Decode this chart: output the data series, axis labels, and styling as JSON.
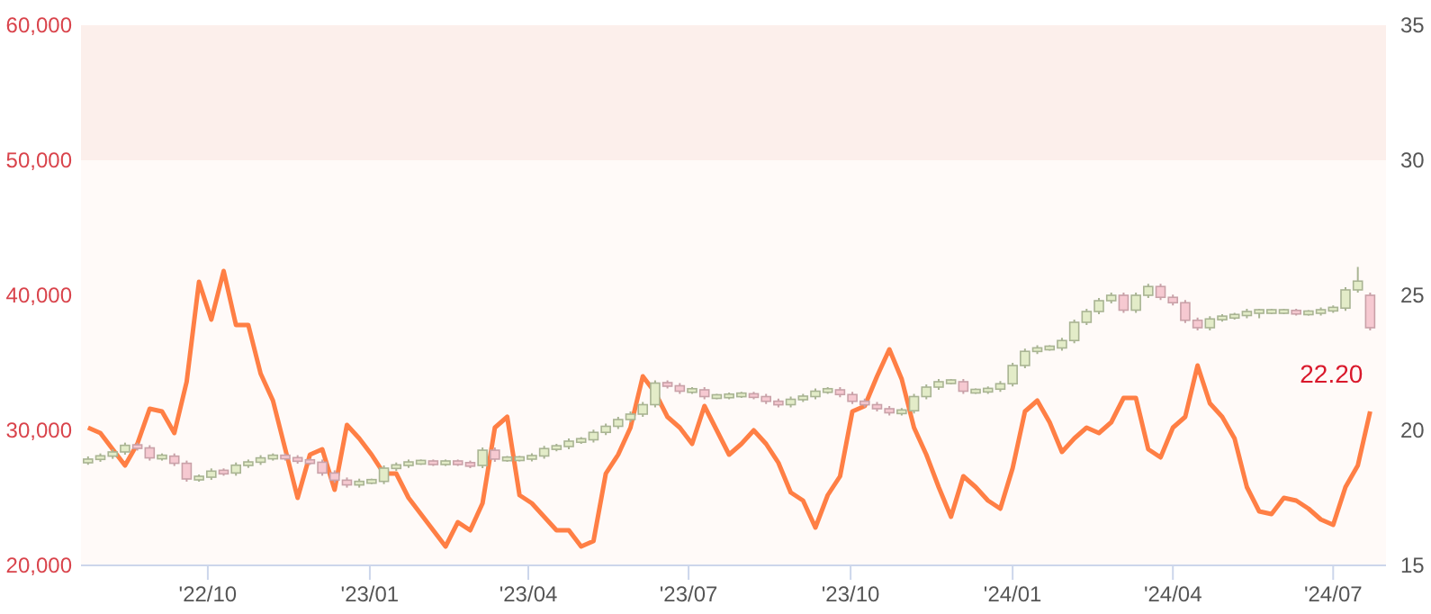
{
  "chart_data": {
    "type": "candlestick",
    "annotations": [
      "22.20"
    ],
    "x": [
      "2022-07-25",
      "2022-08-01",
      "2022-08-08",
      "2022-08-15",
      "2022-08-22",
      "2022-08-29",
      "2022-09-05",
      "2022-09-12",
      "2022-09-19",
      "2022-09-26",
      "2022-10-03",
      "2022-10-10",
      "2022-10-17",
      "2022-10-24",
      "2022-10-31",
      "2022-11-07",
      "2022-11-14",
      "2022-11-21",
      "2022-11-28",
      "2022-12-05",
      "2022-12-12",
      "2022-12-19",
      "2022-12-26",
      "2023-01-02",
      "2023-01-09",
      "2023-01-16",
      "2023-01-23",
      "2023-01-30",
      "2023-02-06",
      "2023-02-13",
      "2023-02-20",
      "2023-02-27",
      "2023-03-06",
      "2023-03-13",
      "2023-03-20",
      "2023-03-27",
      "2023-04-03",
      "2023-04-10",
      "2023-04-17",
      "2023-04-24",
      "2023-05-01",
      "2023-05-08",
      "2023-05-15",
      "2023-05-22",
      "2023-05-29",
      "2023-06-05",
      "2023-06-12",
      "2023-06-19",
      "2023-06-26",
      "2023-07-03",
      "2023-07-10",
      "2023-07-17",
      "2023-07-24",
      "2023-07-31",
      "2023-08-07",
      "2023-08-14",
      "2023-08-21",
      "2023-08-28",
      "2023-09-04",
      "2023-09-11",
      "2023-09-18",
      "2023-09-25",
      "2023-10-02",
      "2023-10-09",
      "2023-10-16",
      "2023-10-23",
      "2023-10-30",
      "2023-11-06",
      "2023-11-13",
      "2023-11-20",
      "2023-11-27",
      "2023-12-04",
      "2023-12-11",
      "2023-12-18",
      "2023-12-25",
      "2024-01-01",
      "2024-01-08",
      "2024-01-15",
      "2024-01-22",
      "2024-01-29",
      "2024-02-05",
      "2024-02-12",
      "2024-02-19",
      "2024-02-26",
      "2024-03-04",
      "2024-03-11",
      "2024-03-18",
      "2024-03-25",
      "2024-04-01",
      "2024-04-08",
      "2024-04-15",
      "2024-04-22",
      "2024-04-29",
      "2024-05-06",
      "2024-05-13",
      "2024-05-20",
      "2024-05-27",
      "2024-06-03",
      "2024-06-10",
      "2024-06-17",
      "2024-06-24",
      "2024-07-01",
      "2024-07-08",
      "2024-07-15",
      "2024-07-22"
    ],
    "xlim": [
      "2022-07-21",
      "2024-07-31"
    ],
    "xticks": [
      {
        "value": "2022-10-01",
        "label": "'22/10"
      },
      {
        "value": "2023-01-01",
        "label": "'23/01"
      },
      {
        "value": "2023-04-01",
        "label": "'23/04"
      },
      {
        "value": "2023-07-01",
        "label": "'23/07"
      },
      {
        "value": "2023-10-01",
        "label": "'23/10"
      },
      {
        "value": "2024-01-01",
        "label": "'24/01"
      },
      {
        "value": "2024-04-01",
        "label": "'24/04"
      },
      {
        "value": "2024-07-01",
        "label": "'24/07"
      }
    ],
    "ylim": [
      20000,
      60000
    ],
    "yticks": [
      {
        "value": 20000,
        "label": "20,000"
      },
      {
        "value": 30000,
        "label": "30,000"
      },
      {
        "value": 40000,
        "label": "40,000"
      },
      {
        "value": 50000,
        "label": "50,000"
      },
      {
        "value": 60000,
        "label": "60,000"
      }
    ],
    "y2lim": [
      15,
      35
    ],
    "y2ticks": [
      15,
      20,
      25,
      30,
      35
    ],
    "bands": [
      {
        "axis": "y",
        "from": 50000,
        "to": 60000,
        "color": "#fcefeb"
      },
      {
        "axis": "y",
        "from": 20000,
        "to": 50000,
        "color": "#fffaf8"
      }
    ],
    "series": [
      {
        "type": "candlestick",
        "ohlc": [
          [
            27600,
            28070,
            27450,
            27870
          ],
          [
            27870,
            28290,
            27670,
            28090
          ],
          [
            28090,
            28600,
            27890,
            28400
          ],
          [
            28400,
            29090,
            28200,
            28890
          ],
          [
            28890,
            29090,
            28500,
            28700
          ],
          [
            28700,
            28900,
            27760,
            27960
          ],
          [
            27960,
            28290,
            27760,
            28090
          ],
          [
            28090,
            28290,
            27360,
            27560
          ],
          [
            27560,
            27760,
            26200,
            26400
          ],
          [
            26400,
            26730,
            26200,
            26530
          ],
          [
            26530,
            27180,
            26330,
            26980
          ],
          [
            26980,
            27180,
            26640,
            26840
          ],
          [
            26840,
            27620,
            26640,
            27420
          ],
          [
            27420,
            27840,
            27220,
            27640
          ],
          [
            27640,
            28160,
            27440,
            27960
          ],
          [
            27960,
            28290,
            27760,
            28090
          ],
          [
            28090,
            28290,
            27760,
            27960
          ],
          [
            27960,
            28160,
            27530,
            27730
          ],
          [
            27730,
            27930,
            27440,
            27640
          ],
          [
            27640,
            27840,
            26640,
            26840
          ],
          [
            26840,
            27040,
            26110,
            26310
          ],
          [
            26310,
            26510,
            25760,
            25960
          ],
          [
            25960,
            26420,
            25760,
            26220
          ],
          [
            26220,
            26420,
            26020,
            26220
          ],
          [
            26220,
            27400,
            26020,
            27200
          ],
          [
            27200,
            27620,
            27000,
            27420
          ],
          [
            27420,
            27840,
            27220,
            27640
          ],
          [
            27640,
            27840,
            27440,
            27640
          ],
          [
            27640,
            27840,
            27360,
            27560
          ],
          [
            27560,
            27840,
            27360,
            27640
          ],
          [
            27640,
            27840,
            27360,
            27560
          ],
          [
            27560,
            27760,
            27200,
            27400
          ],
          [
            27400,
            28730,
            27200,
            28530
          ],
          [
            28530,
            28730,
            27670,
            27870
          ],
          [
            27870,
            28100,
            27670,
            27900
          ],
          [
            27900,
            28100,
            27700,
            27900
          ],
          [
            27900,
            28300,
            27700,
            28100
          ],
          [
            28100,
            28850,
            27900,
            28650
          ],
          [
            28650,
            29000,
            28450,
            28800
          ],
          [
            28800,
            29400,
            28600,
            29200
          ],
          [
            29200,
            29500,
            29000,
            29300
          ],
          [
            29300,
            30050,
            29100,
            29850
          ],
          [
            29850,
            30500,
            29650,
            30300
          ],
          [
            30300,
            31000,
            30100,
            30800
          ],
          [
            30800,
            31400,
            30600,
            31200
          ],
          [
            31200,
            32100,
            31000,
            31900
          ],
          [
            31900,
            33700,
            31700,
            33500
          ],
          [
            33500,
            33700,
            33100,
            33300
          ],
          [
            33300,
            33500,
            32700,
            32900
          ],
          [
            32900,
            33200,
            32700,
            33000
          ],
          [
            33000,
            33200,
            32300,
            32500
          ],
          [
            32500,
            32700,
            32300,
            32500
          ],
          [
            32500,
            32800,
            32300,
            32600
          ],
          [
            32600,
            32850,
            32400,
            32650
          ],
          [
            32650,
            32850,
            32300,
            32500
          ],
          [
            32500,
            32700,
            31950,
            32150
          ],
          [
            32150,
            32350,
            31700,
            31900
          ],
          [
            31900,
            32500,
            31700,
            32300
          ],
          [
            32300,
            32700,
            32100,
            32500
          ],
          [
            32500,
            33100,
            32300,
            32900
          ],
          [
            32900,
            33200,
            32700,
            33000
          ],
          [
            33000,
            33200,
            32450,
            32650
          ],
          [
            32650,
            32850,
            31950,
            32150
          ],
          [
            32150,
            32350,
            31700,
            31900
          ],
          [
            31900,
            32100,
            31400,
            31600
          ],
          [
            31600,
            31800,
            31100,
            31300
          ],
          [
            31300,
            31650,
            31100,
            31450
          ],
          [
            31450,
            32700,
            31250,
            32500
          ],
          [
            32500,
            33400,
            32300,
            33200
          ],
          [
            33200,
            33800,
            33000,
            33600
          ],
          [
            33600,
            33800,
            33400,
            33600
          ],
          [
            33600,
            33800,
            32700,
            32900
          ],
          [
            32900,
            33100,
            32700,
            32900
          ],
          [
            32900,
            33250,
            32700,
            33050
          ],
          [
            33050,
            33650,
            32850,
            33450
          ],
          [
            33450,
            35000,
            33250,
            34800
          ],
          [
            34800,
            36050,
            34600,
            35850
          ],
          [
            35850,
            36300,
            35650,
            36100
          ],
          [
            36100,
            36300,
            35900,
            36100
          ],
          [
            36100,
            36850,
            35900,
            36650
          ],
          [
            36650,
            38200,
            36450,
            38000
          ],
          [
            38000,
            39000,
            37800,
            38800
          ],
          [
            38800,
            39800,
            38600,
            39600
          ],
          [
            39600,
            40200,
            39400,
            40000
          ],
          [
            40000,
            40200,
            38700,
            38900
          ],
          [
            38900,
            40200,
            38700,
            40000
          ],
          [
            40000,
            40850,
            39800,
            40650
          ],
          [
            40650,
            40850,
            39650,
            39850
          ],
          [
            39850,
            40050,
            39250,
            39450
          ],
          [
            39450,
            39650,
            37950,
            38150
          ],
          [
            38150,
            38350,
            37400,
            37600
          ],
          [
            37600,
            38450,
            37400,
            38250
          ],
          [
            38250,
            38600,
            38050,
            38400
          ],
          [
            38400,
            38700,
            38200,
            38500
          ],
          [
            38500,
            39000,
            38300,
            38800
          ],
          [
            38800,
            39000,
            38300,
            38800
          ],
          [
            38800,
            39000,
            38600,
            38800
          ],
          [
            38800,
            39000,
            38600,
            38800
          ],
          [
            38800,
            39000,
            38500,
            38700
          ],
          [
            38700,
            38900,
            38500,
            38700
          ],
          [
            38700,
            39100,
            38500,
            38900
          ],
          [
            38900,
            39250,
            38700,
            39050
          ],
          [
            39050,
            40600,
            38850,
            40400
          ],
          [
            40400,
            42100,
            40200,
            41050
          ],
          [
            40000,
            40200,
            37400,
            37600
          ]
        ]
      },
      {
        "type": "line",
        "axis": "y2",
        "color": "#ff7f45",
        "values": [
          20.1,
          19.9,
          19.3,
          18.7,
          19.5,
          20.8,
          20.7,
          19.9,
          21.8,
          25.5,
          24.1,
          25.9,
          23.9,
          23.9,
          22.1,
          21.1,
          19.3,
          17.5,
          19.1,
          19.3,
          17.8,
          20.2,
          19.7,
          19.1,
          18.4,
          18.4,
          17.5,
          16.9,
          16.3,
          15.7,
          16.6,
          16.3,
          17.3,
          20.1,
          20.5,
          17.6,
          17.3,
          16.8,
          16.3,
          16.3,
          15.7,
          15.9,
          18.4,
          19.1,
          20.1,
          22.0,
          21.4,
          20.5,
          20.1,
          19.5,
          20.9,
          20.0,
          19.1,
          19.5,
          20.0,
          19.5,
          18.8,
          17.7,
          17.4,
          16.4,
          17.6,
          18.3,
          20.7,
          20.9,
          22.0,
          23.0,
          21.9,
          20.1,
          19.1,
          17.9,
          16.8,
          18.3,
          17.9,
          17.4,
          17.1,
          18.6,
          20.7,
          21.1,
          20.3,
          19.2,
          19.7,
          20.1,
          19.9,
          20.3,
          21.2,
          21.2,
          19.3,
          19.0,
          20.1,
          20.5,
          22.4,
          21.0,
          20.5,
          19.7,
          17.9,
          17.0,
          16.9,
          17.5,
          17.4,
          17.1,
          16.7,
          16.5,
          17.9,
          18.7,
          20.7
        ]
      }
    ]
  }
}
